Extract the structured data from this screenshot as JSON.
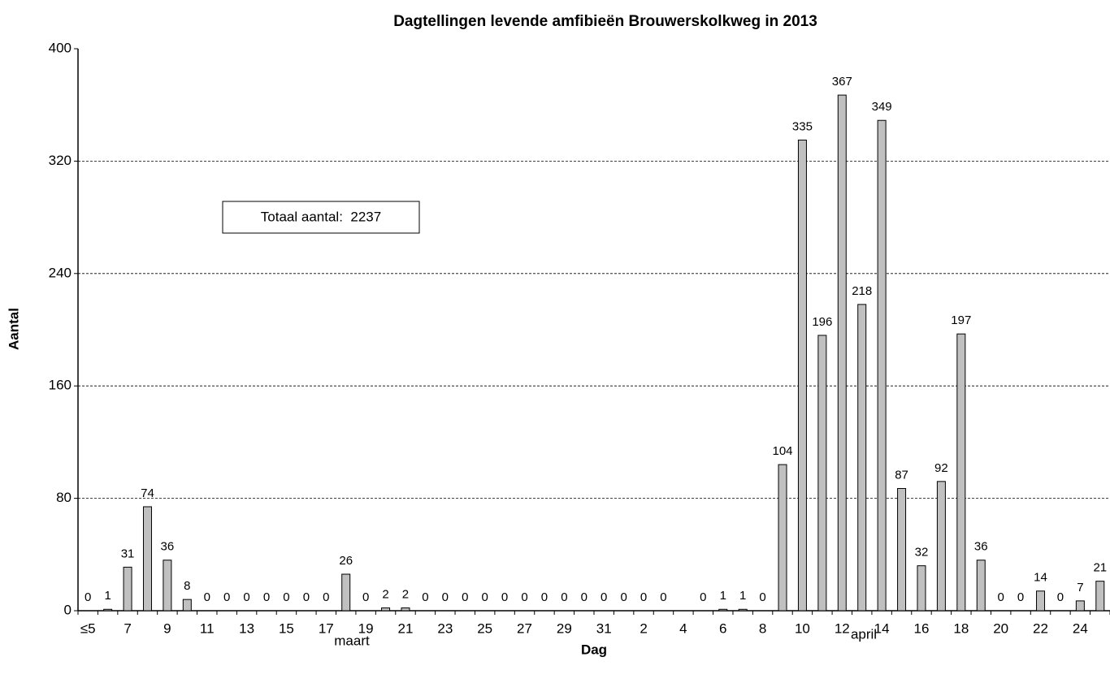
{
  "chart_data": {
    "type": "bar",
    "title": "Dagtellingen levende amfibieën Brouwerskolkweg in 2013",
    "xlabel": "Dag",
    "ylabel": "Aantal",
    "annotation": "Totaal aantal:  2237",
    "groups": [
      "maart",
      "april"
    ],
    "categories": [
      "≤5",
      null,
      "7",
      null,
      "9",
      null,
      "11",
      null,
      "13",
      null,
      "15",
      null,
      "17",
      null,
      "19",
      null,
      "21",
      null,
      "23",
      null,
      "25",
      null,
      "27",
      null,
      "29",
      null,
      "31",
      null,
      "2",
      null,
      "4",
      null,
      "6",
      null,
      "8",
      null,
      "10",
      null,
      "12",
      null,
      "14",
      null,
      "16",
      null,
      "18",
      null,
      "20",
      null,
      "22",
      null,
      "24",
      null
    ],
    "values": [
      0,
      1,
      31,
      74,
      36,
      8,
      0,
      0,
      0,
      0,
      0,
      0,
      0,
      26,
      0,
      2,
      2,
      0,
      0,
      0,
      0,
      0,
      0,
      0,
      0,
      0,
      0,
      0,
      0,
      0,
      null,
      0,
      1,
      1,
      0,
      104,
      335,
      196,
      367,
      218,
      349,
      87,
      32,
      92,
      197,
      36,
      0,
      0,
      14,
      0,
      7,
      21
    ],
    "color": "#c0c0c0",
    "ylim": [
      0,
      400
    ],
    "yticks": [
      0,
      80,
      160,
      240,
      320,
      400
    ],
    "grid": true
  }
}
